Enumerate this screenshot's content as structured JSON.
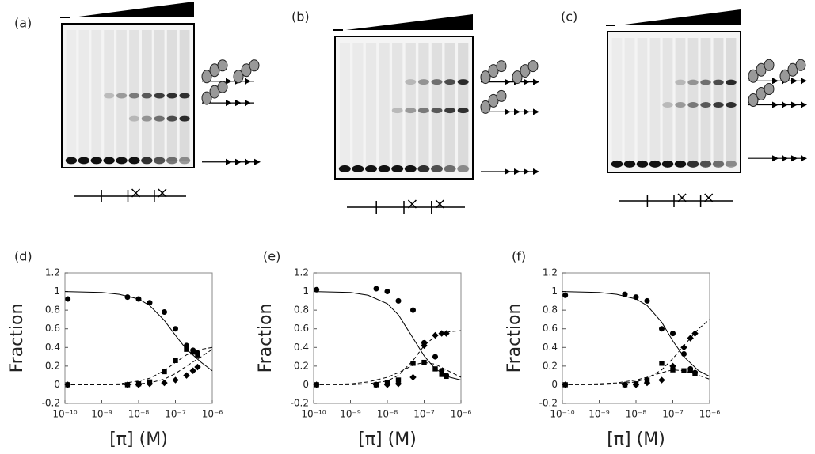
{
  "panel_labels": [
    "(a)",
    "(b)",
    "(c)"
  ],
  "chart_data": [
    {
      "type": "scatter",
      "title": "(d)",
      "xlabel": "[π] (M)",
      "ylabel": "Fraction",
      "xscale": "log",
      "xlim": [
        1e-10,
        1e-06
      ],
      "xticks": [
        {
          "value": 1e-10,
          "label": "10⁻¹⁰"
        },
        {
          "value": 1e-09,
          "label": "10⁻⁹"
        },
        {
          "value": 1e-08,
          "label": "10⁻⁸"
        },
        {
          "value": 1e-07,
          "label": "10⁻⁷"
        },
        {
          "value": 1e-06,
          "label": "10⁻⁶"
        }
      ],
      "ylim": [
        -0.2,
        1.2
      ],
      "yticks": [
        -0.2,
        0,
        0.2,
        0.4,
        0.6,
        0.8,
        1,
        1.2
      ],
      "x": [
        1.2e-10,
        5e-09,
        1e-08,
        2e-08,
        5e-08,
        1e-07,
        2e-07,
        3e-07,
        4e-07
      ],
      "series": [
        {
          "marker": "circle",
          "color": "#000000",
          "values": [
            0.92,
            0.94,
            0.92,
            0.88,
            0.78,
            0.6,
            0.42,
            0.37,
            0.34
          ]
        },
        {
          "marker": "square",
          "color": "#000000",
          "values": [
            0,
            0,
            0.01,
            0.03,
            0.14,
            0.26,
            0.38,
            0.35,
            0.32
          ]
        },
        {
          "marker": "diamond",
          "color": "#000000",
          "values": [
            0,
            0,
            0,
            0.01,
            0.02,
            0.05,
            0.1,
            0.15,
            0.19
          ]
        }
      ],
      "fit_x": [
        1e-10,
        1e-09,
        3e-09,
        1e-08,
        2e-08,
        5e-08,
        1e-07,
        2e-07,
        5e-07,
        1e-06
      ],
      "fits": [
        {
          "style": "solid",
          "color": "#000000",
          "values": [
            1,
            0.99,
            0.97,
            0.92,
            0.85,
            0.69,
            0.53,
            0.38,
            0.24,
            0.15
          ]
        },
        {
          "style": "dashed",
          "color": "#000000",
          "values": [
            0,
            0,
            0.01,
            0.04,
            0.07,
            0.15,
            0.24,
            0.32,
            0.38,
            0.4
          ]
        },
        {
          "style": "dashed",
          "color": "#000000",
          "values": [
            0,
            0,
            0,
            0.01,
            0.02,
            0.06,
            0.12,
            0.2,
            0.3,
            0.38
          ]
        }
      ]
    },
    {
      "type": "scatter",
      "title": "(e)",
      "xlabel": "[π] (M)",
      "ylabel": "Fraction",
      "xscale": "log",
      "xlim": [
        1e-10,
        1e-06
      ],
      "xticks": [
        {
          "value": 1e-10,
          "label": "10⁻¹⁰"
        },
        {
          "value": 1e-09,
          "label": "10⁻⁹"
        },
        {
          "value": 1e-08,
          "label": "10⁻⁸"
        },
        {
          "value": 1e-07,
          "label": "10⁻⁷"
        },
        {
          "value": 1e-06,
          "label": "10⁻⁶"
        }
      ],
      "ylim": [
        -0.2,
        1.2
      ],
      "yticks": [
        -0.2,
        0,
        0.2,
        0.4,
        0.6,
        0.8,
        1,
        1.2
      ],
      "x": [
        1.2e-10,
        5e-09,
        1e-08,
        2e-08,
        5e-08,
        1e-07,
        2e-07,
        3e-07,
        4e-07
      ],
      "series": [
        {
          "marker": "circle",
          "color": "#000000",
          "values": [
            1.02,
            1.03,
            1,
            0.9,
            0.8,
            0.45,
            0.3,
            0.15,
            0.1
          ]
        },
        {
          "marker": "square",
          "color": "#000000",
          "values": [
            0,
            0,
            0.02,
            0.05,
            0.23,
            0.24,
            0.17,
            0.11,
            0.09
          ]
        },
        {
          "marker": "diamond",
          "color": "#000000",
          "values": [
            0,
            0,
            0,
            0.01,
            0.08,
            0.42,
            0.53,
            0.55,
            0.55
          ]
        }
      ],
      "fit_x": [
        1e-10,
        1e-09,
        3e-09,
        1e-08,
        2e-08,
        5e-08,
        1e-07,
        2e-07,
        5e-07,
        1e-06
      ],
      "fits": [
        {
          "style": "solid",
          "color": "#000000",
          "values": [
            1,
            0.99,
            0.96,
            0.87,
            0.75,
            0.5,
            0.31,
            0.17,
            0.08,
            0.05
          ]
        },
        {
          "style": "dashed",
          "color": "#000000",
          "values": [
            0,
            0,
            0.01,
            0.04,
            0.1,
            0.26,
            0.42,
            0.52,
            0.57,
            0.58
          ]
        },
        {
          "style": "dashed",
          "color": "#000000",
          "values": [
            0,
            0.01,
            0.03,
            0.08,
            0.13,
            0.21,
            0.24,
            0.22,
            0.14,
            0.08
          ]
        }
      ]
    },
    {
      "type": "scatter",
      "title": "(f)",
      "xlabel": "[π] (M)",
      "ylabel": "Fraction",
      "xscale": "log",
      "xlim": [
        1e-10,
        1e-06
      ],
      "xticks": [
        {
          "value": 1e-10,
          "label": "10⁻¹⁰"
        },
        {
          "value": 1e-09,
          "label": "10⁻⁹"
        },
        {
          "value": 1e-08,
          "label": "10⁻⁸"
        },
        {
          "value": 1e-07,
          "label": "10⁻⁷"
        },
        {
          "value": 1e-06,
          "label": "10⁻⁶"
        }
      ],
      "ylim": [
        -0.2,
        1.2
      ],
      "yticks": [
        -0.2,
        0,
        0.2,
        0.4,
        0.6,
        0.8,
        1,
        1.2
      ],
      "x": [
        1.2e-10,
        5e-09,
        1e-08,
        2e-08,
        5e-08,
        1e-07,
        2e-07,
        3e-07,
        4e-07
      ],
      "series": [
        {
          "marker": "circle",
          "color": "#000000",
          "values": [
            0.96,
            0.97,
            0.94,
            0.9,
            0.6,
            0.55,
            0.33,
            0.17,
            0.13
          ]
        },
        {
          "marker": "square",
          "color": "#000000",
          "values": [
            0,
            0,
            0.01,
            0.05,
            0.23,
            0.16,
            0.15,
            0.15,
            0.12
          ]
        },
        {
          "marker": "diamond",
          "color": "#000000",
          "values": [
            0,
            0,
            0,
            0.02,
            0.05,
            0.2,
            0.4,
            0.5,
            0.55
          ]
        }
      ],
      "fit_x": [
        1e-10,
        1e-09,
        3e-09,
        1e-08,
        2e-08,
        5e-08,
        1e-07,
        2e-07,
        5e-07,
        1e-06
      ],
      "fits": [
        {
          "style": "solid",
          "color": "#000000",
          "values": [
            1,
            0.99,
            0.97,
            0.92,
            0.85,
            0.67,
            0.47,
            0.3,
            0.15,
            0.09
          ]
        },
        {
          "style": "dashed",
          "color": "#000000",
          "values": [
            0,
            0,
            0.01,
            0.03,
            0.07,
            0.16,
            0.28,
            0.42,
            0.6,
            0.7
          ]
        },
        {
          "style": "dashed",
          "color": "#000000",
          "values": [
            0,
            0.01,
            0.02,
            0.05,
            0.08,
            0.13,
            0.16,
            0.15,
            0.1,
            0.06
          ]
        }
      ]
    }
  ]
}
